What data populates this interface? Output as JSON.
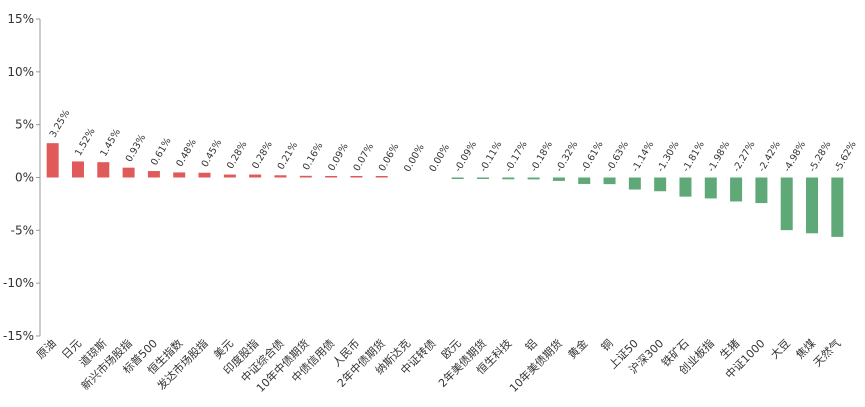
{
  "chart_data": {
    "type": "bar",
    "title": "",
    "xlabel": "",
    "ylabel": "",
    "ylim": [
      -15,
      15
    ],
    "yticks": [
      15,
      10,
      5,
      0,
      -5,
      -10,
      -15
    ],
    "ytick_labels": [
      "15%",
      "10%",
      "5%",
      "0%",
      "-5%",
      "-10%",
      "-15%"
    ],
    "grid": false,
    "legend": "none",
    "colors": {
      "positive": "#e05a5a",
      "negative": "#5fa878"
    },
    "categories": [
      "原油",
      "日元",
      "道琼斯",
      "新兴市场股指",
      "标普500",
      "恒生指数",
      "发达市场股指",
      "美元",
      "印度股指",
      "中证综合债",
      "10年中债期货",
      "中债信用债",
      "人民币",
      "2年中债期货",
      "纳斯达克",
      "中证转债",
      "欧元",
      "2年美债期货",
      "恒生科技",
      "铝",
      "10年美债期货",
      "黄金",
      "铜",
      "上证50",
      "沪深300",
      "铁矿石",
      "创业板指",
      "生猪",
      "中证1000",
      "大豆",
      "焦煤",
      "天然气"
    ],
    "values": [
      3.25,
      1.52,
      1.45,
      0.93,
      0.61,
      0.48,
      0.45,
      0.28,
      0.28,
      0.21,
      0.16,
      0.09,
      0.07,
      0.06,
      0.0,
      0.0,
      -0.09,
      -0.11,
      -0.17,
      -0.18,
      -0.32,
      -0.61,
      -0.63,
      -1.14,
      -1.3,
      -1.81,
      -1.98,
      -2.27,
      -2.42,
      -4.98,
      -5.28,
      -5.62
    ],
    "data_labels": [
      "3.25%",
      "1.52%",
      "1.45%",
      "0.93%",
      "0.61%",
      "0.48%",
      "0.45%",
      "0.28%",
      "0.28%",
      "0.21%",
      "0.16%",
      "0.09%",
      "0.07%",
      "0.06%",
      "0.00%",
      "0.00%",
      "-0.09%",
      "-0.11%",
      "-0.17%",
      "-0.18%",
      "-0.32%",
      "-0.61%",
      "-0.63%",
      "-1.14%",
      "-1.30%",
      "-1.81%",
      "-1.98%",
      "-2.27%",
      "-2.42%",
      "-4.98%",
      "-5.28%",
      "-5.62%"
    ]
  }
}
